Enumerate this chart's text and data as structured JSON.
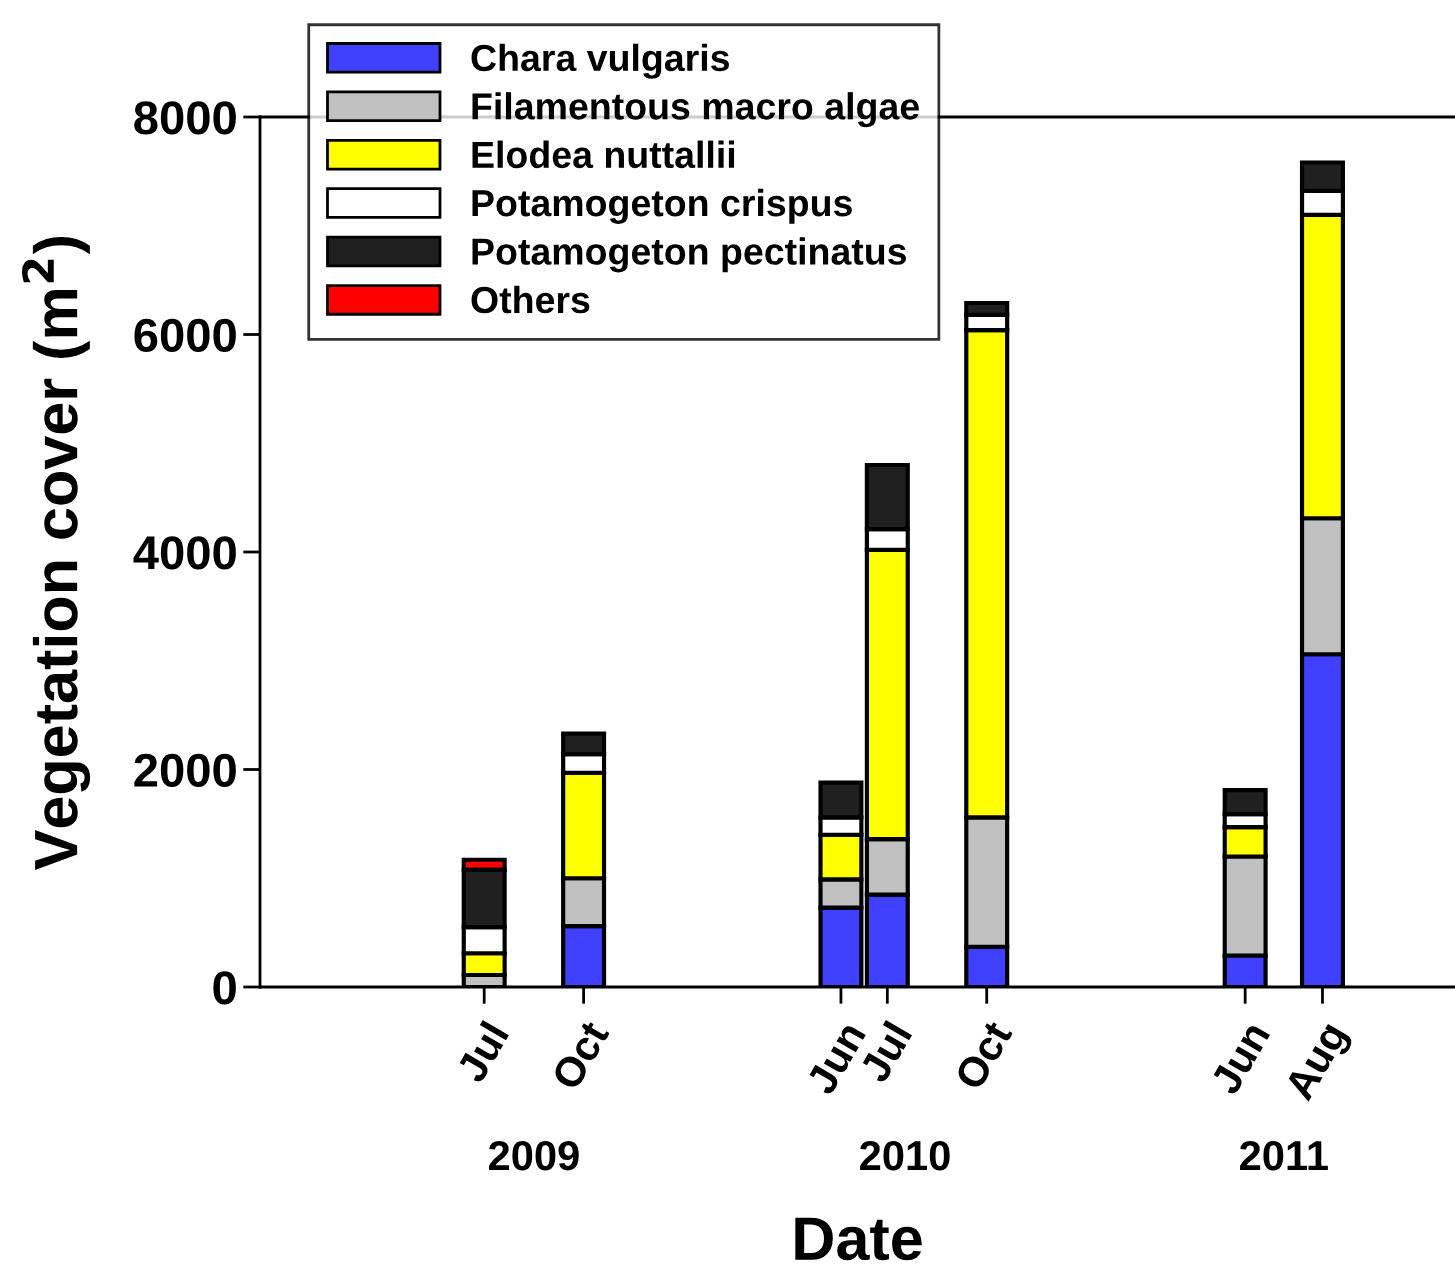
{
  "chart_data": {
    "type": "bar",
    "stacked": true,
    "xlabel": "Date",
    "ylabel": "Vegetation cover (m$^{2}$)",
    "x": [
      "2009-07-15",
      "2009-10-13",
      "2010-06-03",
      "2010-07-15",
      "2010-10-13",
      "2011-06-04",
      "2011-08-13"
    ],
    "series": [
      {
        "name": "Chara vulgaris",
        "color": "#4040ff",
        "values": [
          0,
          560,
          730,
          850,
          370,
          290,
          3060
        ]
      },
      {
        "name": "Filamentous macro algae",
        "color": "#c0c0c0",
        "values": [
          110,
          440,
          260,
          510,
          1190,
          910,
          1250
        ]
      },
      {
        "name": "Elodea nuttallii",
        "color": "#ffff00",
        "values": [
          200,
          970,
          410,
          2660,
          4480,
          270,
          2790
        ]
      },
      {
        "name": "Potamogeton crispus",
        "color": "#ffffff",
        "values": [
          240,
          170,
          160,
          190,
          140,
          120,
          220
        ]
      },
      {
        "name": "Potamogeton pectinatus",
        "color": "#202020",
        "values": [
          530,
          190,
          320,
          590,
          110,
          220,
          260
        ]
      },
      {
        "name": "Others",
        "color": "#ff0000",
        "values": [
          90,
          null,
          null,
          null,
          null,
          null,
          null
        ]
      }
    ],
    "xlim": [
      "2008-12-24",
      "2011-12-11"
    ],
    "xticks": [
      {
        "value": "2009-07-15",
        "label": "Jul"
      },
      {
        "value": "2009-10-13",
        "label": "Oct"
      },
      {
        "value": "2010-06-03",
        "label": "Jun"
      },
      {
        "value": "2010-07-15",
        "label": "Jul"
      },
      {
        "value": "2010-10-13",
        "label": "Oct"
      },
      {
        "value": "2011-06-04",
        "label": "Jun"
      },
      {
        "value": "2011-08-13",
        "label": "Aug"
      }
    ],
    "ylim": [
      0,
      8000
    ],
    "yticks": [
      0,
      2000,
      4000,
      6000,
      8000
    ],
    "annotations": [
      "2009",
      "2010",
      "2011"
    ],
    "grid": false,
    "legend": "top left"
  }
}
